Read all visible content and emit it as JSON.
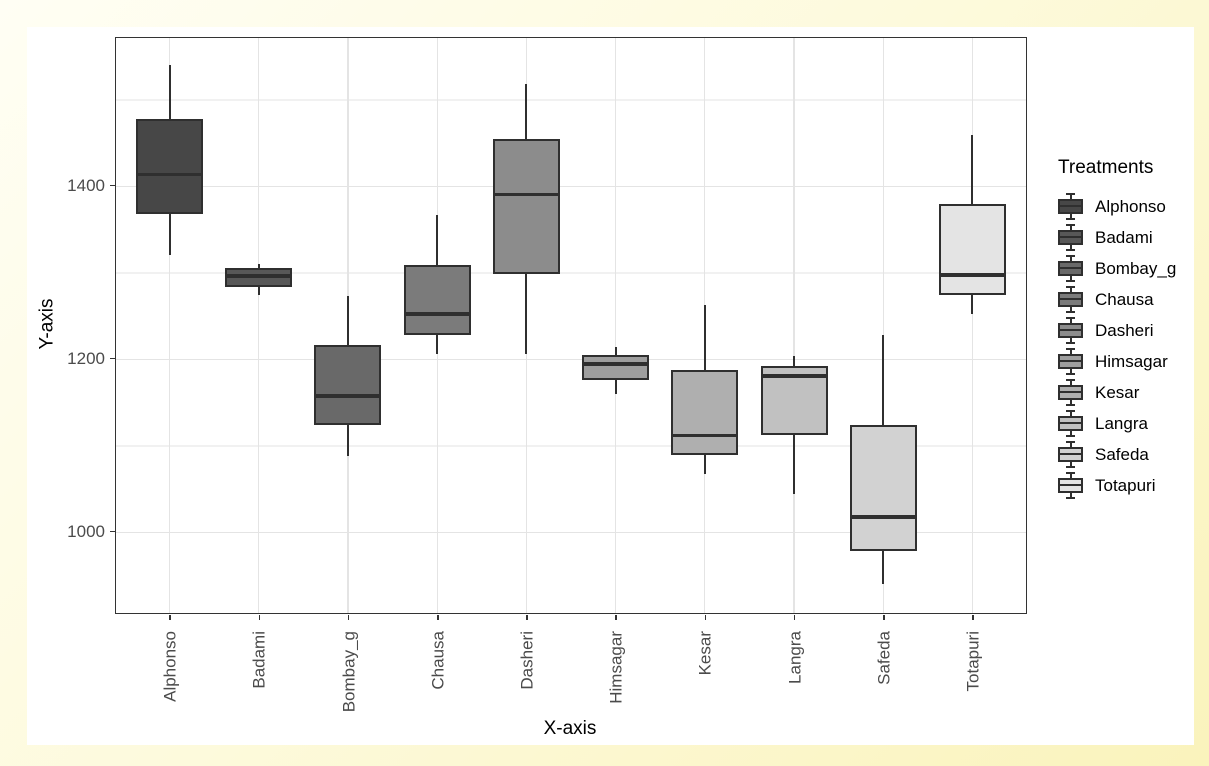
{
  "chart_data": {
    "type": "boxplot",
    "xlabel": "X-axis",
    "ylabel": "Y-axis",
    "legend_title": "Treatments",
    "legend_position": "right",
    "grid": true,
    "categories": [
      "Alphonso",
      "Badami",
      "Bombay_g",
      "Chausa",
      "Dasheri",
      "Himsagar",
      "Kesar",
      "Langra",
      "Safeda",
      "Totapuri"
    ],
    "boxes": [
      {
        "name": "Alphonso",
        "min": 1320,
        "q1": 1367,
        "median": 1413,
        "q3": 1477,
        "max": 1540,
        "fill": "#474747"
      },
      {
        "name": "Badami",
        "min": 1274,
        "q1": 1283,
        "median": 1296,
        "q3": 1305,
        "max": 1310,
        "fill": "#585858"
      },
      {
        "name": "Bombay_g",
        "min": 1088,
        "q1": 1123,
        "median": 1157,
        "q3": 1216,
        "max": 1273,
        "fill": "#696969"
      },
      {
        "name": "Chausa",
        "min": 1205,
        "q1": 1227,
        "median": 1252,
        "q3": 1309,
        "max": 1366,
        "fill": "#7B7B7B"
      },
      {
        "name": "Dasheri",
        "min": 1205,
        "q1": 1298,
        "median": 1390,
        "q3": 1454,
        "max": 1518,
        "fill": "#8C8C8C"
      },
      {
        "name": "Himsagar",
        "min": 1159,
        "q1": 1176,
        "median": 1194,
        "q3": 1204,
        "max": 1214,
        "fill": "#9E9E9E"
      },
      {
        "name": "Kesar",
        "min": 1067,
        "q1": 1089,
        "median": 1111,
        "q3": 1187,
        "max": 1262,
        "fill": "#AFAFAF"
      },
      {
        "name": "Langra",
        "min": 1044,
        "q1": 1112,
        "median": 1180,
        "q3": 1192,
        "max": 1203,
        "fill": "#C1C1C1"
      },
      {
        "name": "Safeda",
        "min": 939,
        "q1": 978,
        "median": 1017,
        "q3": 1123,
        "max": 1227,
        "fill": "#D2D2D2"
      },
      {
        "name": "Totapuri",
        "min": 1252,
        "q1": 1274,
        "median": 1297,
        "q3": 1379,
        "max": 1459,
        "fill": "#E4E4E4"
      }
    ],
    "y_ticks": [
      1000,
      1200,
      1400
    ],
    "y_minor_gridlines": [
      1100,
      1300,
      1500
    ],
    "ylim": [
      906,
      1571
    ],
    "colors": {
      "box_stroke": "#2F2F2F",
      "panel_border": "#333333",
      "grid_major": "#E4E4E4",
      "grid_minor": "#F1F1F1",
      "tick_text": "#4B4B4B",
      "background_frame_light": "#FFFEF4",
      "background_frame_dark": "#FAF3BC",
      "panel_background": "#FFFFFF"
    }
  }
}
